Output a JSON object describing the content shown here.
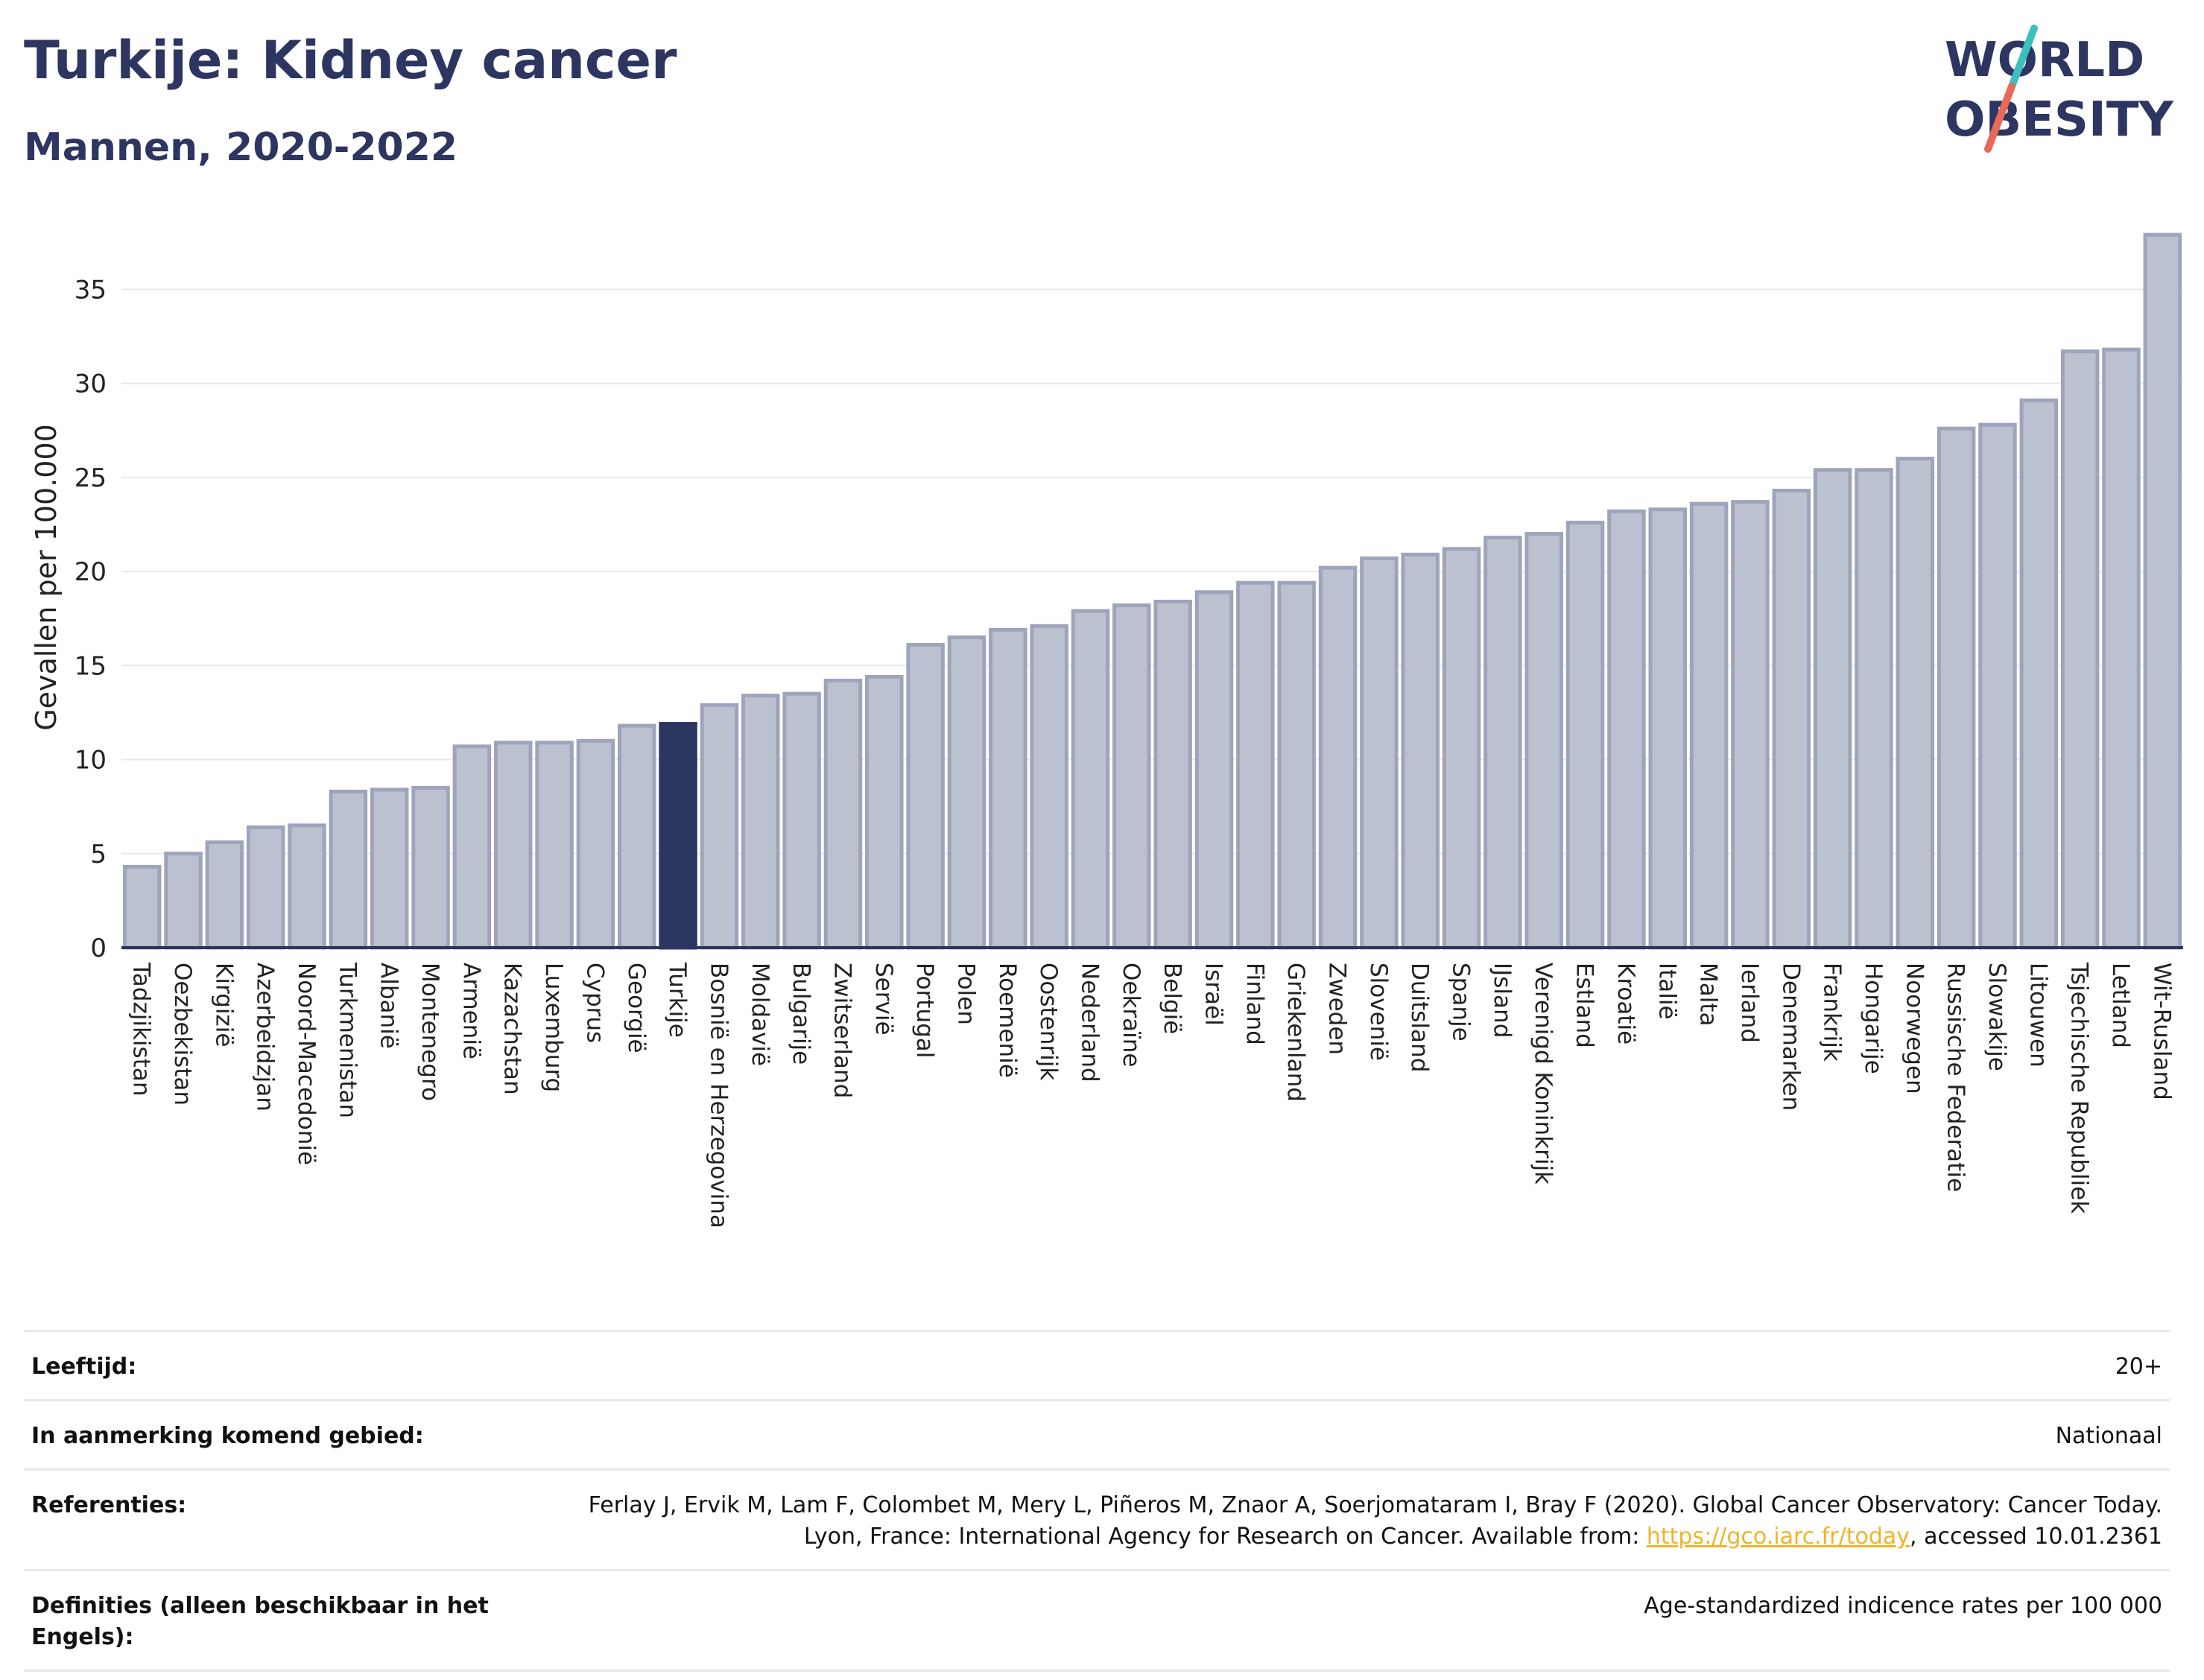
{
  "header": {
    "title": "Turkije: Kidney cancer",
    "subtitle": "Mannen, 2020-2022"
  },
  "logo": {
    "line1": "WORLD",
    "line2": "OBESITY",
    "accent_colors": [
      "#3bbfbf",
      "#e8695a"
    ]
  },
  "colors": {
    "bar": "#bcc1d0",
    "bar_stroke": "#9ea4bb",
    "highlight": "#2d3561",
    "grid": "#e6e8ee",
    "axis": "#2d3561"
  },
  "chart_data": {
    "type": "bar",
    "title": "Turkije: Kidney cancer",
    "subtitle": "Mannen, 2020-2022",
    "xlabel": "",
    "ylabel": "Gevallen per 100.000",
    "ylim": [
      0,
      38.5
    ],
    "yticks": [
      0,
      5,
      10,
      15,
      20,
      25,
      30,
      35
    ],
    "grid": true,
    "highlight": "Turkije",
    "categories": [
      "Tadzjikistan",
      "Oezbekistan",
      "Kirgizië",
      "Azerbeidzjan",
      "Noord-Macedonië",
      "Turkmenistan",
      "Albanië",
      "Montenegro",
      "Armenië",
      "Kazachstan",
      "Luxemburg",
      "Cyprus",
      "Georgië",
      "Turkije",
      "Bosnië en Herzegovina",
      "Moldavië",
      "Bulgarije",
      "Zwitserland",
      "Servië",
      "Portugal",
      "Polen",
      "Roemenië",
      "Oostenrijk",
      "Nederland",
      "Oekraïne",
      "België",
      "Israël",
      "Finland",
      "Griekenland",
      "Zweden",
      "Slovenië",
      "Duitsland",
      "Spanje",
      "IJsland",
      "Verenigd Koninkrijk",
      "Estland",
      "Kroatië",
      "Italië",
      "Malta",
      "Ierland",
      "Denemarken",
      "Frankrijk",
      "Hongarije",
      "Noorwegen",
      "Russische Federatie",
      "Slowakije",
      "Litouwen",
      "Tsjechische Republiek",
      "Letland",
      "Wit-Rusland"
    ],
    "values": [
      4.3,
      5.0,
      5.6,
      6.4,
      6.5,
      8.3,
      8.4,
      8.5,
      10.7,
      10.9,
      10.9,
      11.0,
      11.8,
      11.9,
      12.9,
      13.4,
      13.5,
      14.2,
      14.4,
      16.1,
      16.5,
      16.9,
      17.1,
      17.9,
      18.2,
      18.4,
      18.9,
      19.4,
      19.4,
      20.2,
      20.7,
      20.9,
      21.2,
      21.8,
      22.0,
      22.6,
      23.2,
      23.3,
      23.6,
      23.7,
      24.3,
      25.4,
      25.4,
      26.0,
      27.6,
      27.8,
      29.1,
      31.7,
      31.8,
      37.9
    ]
  },
  "info": {
    "rows": [
      {
        "key": "Leeftijd:",
        "value": "20+"
      },
      {
        "key": "In aanmerking komend gebied:",
        "value": "Nationaal"
      },
      {
        "key": "Referenties:",
        "value_pre": "Ferlay J, Ervik M, Lam F, Colombet M, Mery L, Piñeros M, Znaor A, Soerjomataram I, Bray F (2020). Global Cancer Observatory: Cancer Today. Lyon, France: International Agency for Research on Cancer. Available from: ",
        "link": "https://gco.iarc.fr/today",
        "value_post": ", accessed 10.01.2361"
      },
      {
        "key": "Definities (alleen beschikbaar in het Engels):",
        "value": "Age-standardized indicence rates per 100 000"
      }
    ]
  }
}
